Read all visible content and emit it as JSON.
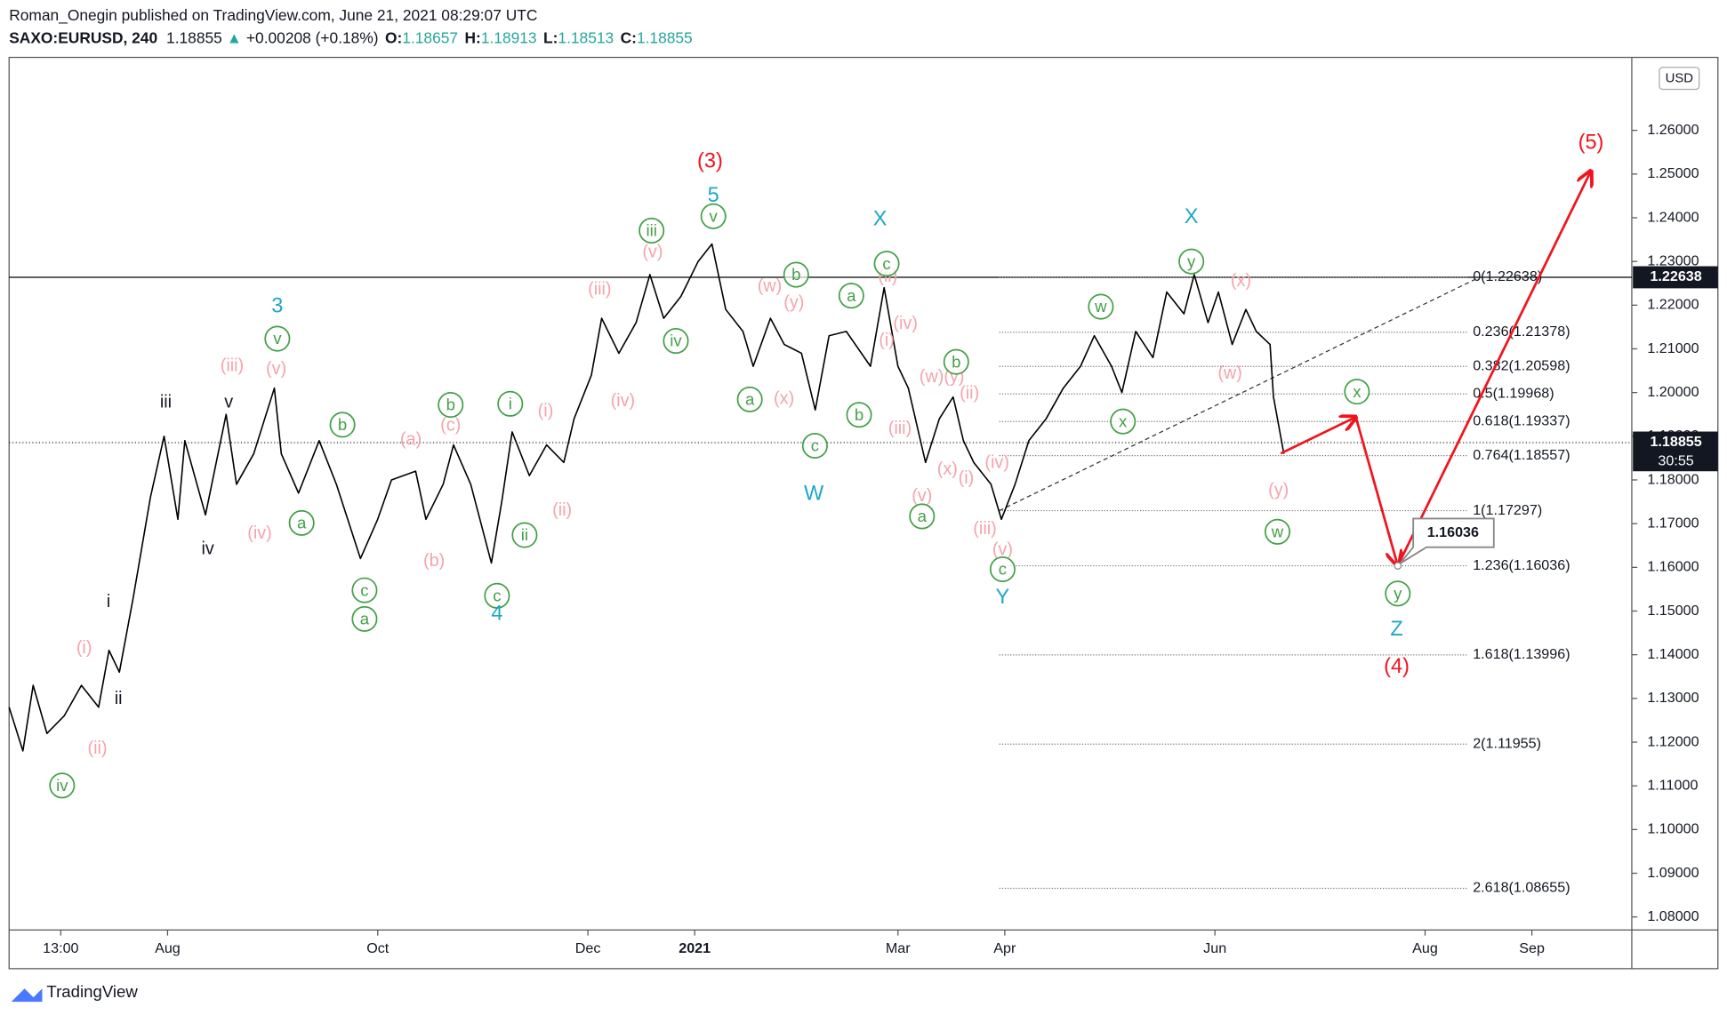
{
  "chart_data": {
    "type": "line",
    "publisher": "Roman_Onegin published on TradingView.com, June 21, 2021 08:29:07 UTC",
    "symbol": "SAXO:EURUSD, 240",
    "last": "1.18855",
    "change_arrow": "▲",
    "change": "+0.00208 (+0.18%)",
    "ohlc": [
      {
        "key": "O:",
        "value": "1.18657"
      },
      {
        "key": "H:",
        "value": "1.18913"
      },
      {
        "key": "L:",
        "value": "1.18513"
      },
      {
        "key": "C:",
        "value": "1.18855"
      }
    ],
    "currency": "USD",
    "brand": "TradingView",
    "color": "#000000",
    "x": [
      -46,
      -42,
      -39,
      -35,
      -30,
      -25,
      -20,
      -17,
      -14,
      -10,
      -5,
      -1,
      3,
      5,
      11,
      17,
      20,
      25,
      31,
      33,
      38,
      44,
      49,
      56,
      61,
      65,
      72,
      75,
      80,
      83,
      88,
      94,
      97,
      100,
      105,
      110,
      115,
      118,
      123,
      126,
      131,
      136,
      140,
      144,
      149,
      154,
      158,
      162,
      167,
      170,
      175,
      179,
      184,
      188,
      192,
      197,
      204,
      208,
      212,
      215,
      220,
      224,
      228,
      231,
      234,
      239,
      242,
      246,
      250,
      255,
      260,
      265,
      269,
      274,
      277,
      281,
      286,
      290,
      295,
      298,
      302,
      305,
      309,
      313,
      316,
      320,
      321,
      324
    ],
    "values": [
      1.128,
      1.118,
      1.133,
      1.122,
      1.126,
      1.133,
      1.128,
      1.141,
      1.136,
      1.153,
      1.176,
      1.19,
      1.171,
      1.189,
      1.172,
      1.195,
      1.179,
      1.186,
      1.201,
      1.186,
      1.177,
      1.189,
      1.179,
      1.162,
      1.171,
      1.18,
      1.182,
      1.171,
      1.179,
      1.188,
      1.179,
      1.161,
      1.175,
      1.191,
      1.181,
      1.188,
      1.184,
      1.194,
      1.204,
      1.217,
      1.209,
      1.216,
      1.227,
      1.217,
      1.222,
      1.23,
      1.234,
      1.219,
      1.214,
      1.206,
      1.217,
      1.211,
      1.209,
      1.196,
      1.213,
      1.214,
      1.206,
      1.224,
      1.206,
      1.201,
      1.184,
      1.194,
      1.199,
      1.189,
      1.184,
      1.179,
      1.171,
      1.179,
      1.189,
      1.194,
      1.201,
      1.206,
      1.213,
      1.206,
      1.2,
      1.214,
      1.208,
      1.223,
      1.218,
      1.227,
      1.216,
      1.223,
      1.211,
      1.219,
      1.214,
      1.211,
      1.199,
      1.186
    ],
    "xlim": [
      -46,
      425
    ],
    "xticks": [
      {
        "value": -31,
        "label": "13:00"
      },
      {
        "value": 0,
        "label": "Aug"
      },
      {
        "value": 61,
        "label": "Oct"
      },
      {
        "value": 122,
        "label": "Dec"
      },
      {
        "value": 153,
        "label": "2021"
      },
      {
        "value": 212,
        "label": "Mar"
      },
      {
        "value": 243,
        "label": "Apr"
      },
      {
        "value": 304,
        "label": "Jun"
      },
      {
        "value": 365,
        "label": "Aug"
      },
      {
        "value": 396,
        "label": "Sep"
      }
    ],
    "ylim": [
      1.077,
      1.2767
    ],
    "yticks": [
      {
        "value": 1.08,
        "label": "1.08000"
      },
      {
        "value": 1.09,
        "label": "1.09000"
      },
      {
        "value": 1.1,
        "label": "1.10000"
      },
      {
        "value": 1.11,
        "label": "1.11000"
      },
      {
        "value": 1.12,
        "label": "1.12000"
      },
      {
        "value": 1.13,
        "label": "1.13000"
      },
      {
        "value": 1.14,
        "label": "1.14000"
      },
      {
        "value": 1.15,
        "label": "1.15000"
      },
      {
        "value": 1.16,
        "label": "1.16000"
      },
      {
        "value": 1.17,
        "label": "1.17000"
      },
      {
        "value": 1.18,
        "label": "1.18000"
      },
      {
        "value": 1.19,
        "label": "1.19000"
      },
      {
        "value": 1.2,
        "label": "1.20000"
      },
      {
        "value": 1.21,
        "label": "1.21000"
      },
      {
        "value": 1.22,
        "label": "1.22000"
      },
      {
        "value": 1.23,
        "label": "1.23000"
      },
      {
        "value": 1.24,
        "label": "1.24000"
      },
      {
        "value": 1.25,
        "label": "1.25000"
      },
      {
        "value": 1.26,
        "label": "1.26000"
      }
    ],
    "resistance": {
      "value": 1.22638,
      "label": "1.22638"
    },
    "price_line": {
      "value": 1.18855,
      "label": "1.18855",
      "countdown": "30:55"
    },
    "callout": {
      "value": 1.16036,
      "label": "1.16036"
    },
    "fib_levels": [
      {
        "value": 1.22638,
        "label": "0(1.22638)"
      },
      {
        "value": 1.21378,
        "label": "0.236(1.21378)"
      },
      {
        "value": 1.20598,
        "label": "0.382(1.20598)"
      },
      {
        "value": 1.19968,
        "label": "0.5(1.19968)"
      },
      {
        "value": 1.19337,
        "label": "0.618(1.19337)"
      },
      {
        "value": 1.18557,
        "label": "0.764(1.18557)"
      },
      {
        "value": 1.17297,
        "label": "1(1.17297)"
      },
      {
        "value": 1.16036,
        "label": "1.236(1.16036)"
      },
      {
        "value": 1.13996,
        "label": "1.618(1.13996)"
      },
      {
        "value": 1.11955,
        "label": "2(1.11955)"
      },
      {
        "value": 1.08655,
        "label": "2.618(1.08655)"
      }
    ],
    "wave_labels": [
      "iii",
      "v",
      "iv",
      "i",
      "ii",
      "(i)",
      "(ii)",
      "(iii)",
      "(iv)",
      "(v)",
      "(a)",
      "(c)",
      "(b)",
      "(i)",
      "(ii)",
      "(iii)",
      "(iv)",
      "(v)",
      "(w)",
      "(y)",
      "(x)",
      "(ii)",
      "(iv)",
      "(i)",
      "(iii)",
      "(w)(y)",
      "(ii)",
      "(x)",
      "(i)",
      "(v)",
      "(iv)",
      "(iii)",
      "(v)",
      "(x)",
      "(w)",
      "(y)",
      "iv",
      "v",
      "a",
      "b",
      "c",
      "a",
      "b",
      "c",
      "i",
      "ii",
      "iii",
      "v",
      "iv",
      "a",
      "b",
      "c",
      "b",
      "a",
      "c",
      "b",
      "a",
      "c",
      "w",
      "x",
      "y",
      "x",
      "w",
      "y",
      "3",
      "5",
      "4",
      "X",
      "W",
      "Y",
      "X",
      "Z",
      "(3)",
      "(4)",
      "(5)"
    ]
  }
}
